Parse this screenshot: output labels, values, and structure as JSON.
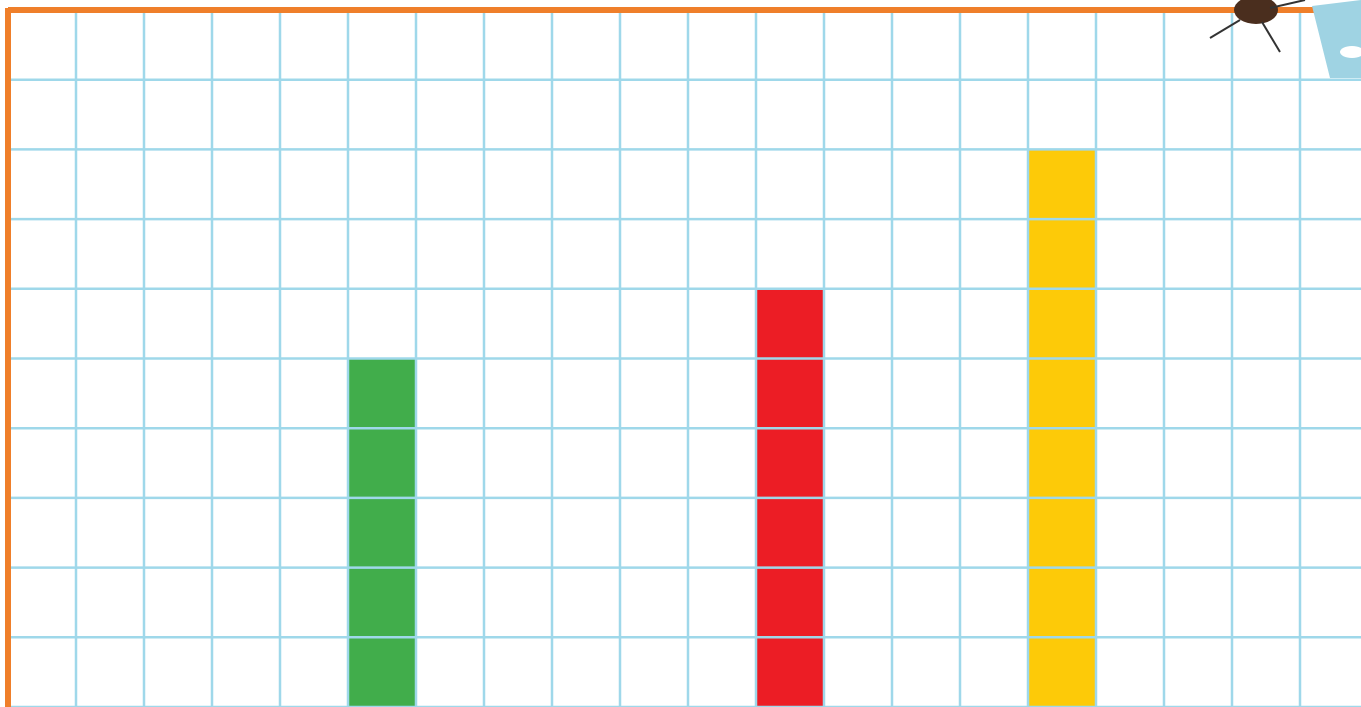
{
  "chart_data": {
    "type": "bar",
    "categories": [
      null,
      null,
      null,
      null,
      null,
      null,
      null,
      null,
      null,
      null,
      null,
      null,
      null,
      null,
      null,
      null,
      null,
      null,
      null,
      null
    ],
    "series": [
      {
        "color": "#41ad4b",
        "values": [
          null,
          null,
          null,
          null,
          null,
          5,
          null,
          null,
          null,
          null,
          null,
          null,
          null,
          null,
          null,
          null,
          null,
          null,
          null,
          null
        ]
      },
      {
        "color": "#ec1d25",
        "values": [
          null,
          null,
          null,
          null,
          null,
          null,
          null,
          null,
          null,
          null,
          null,
          6,
          null,
          null,
          null,
          null,
          null,
          null,
          null,
          null
        ]
      },
      {
        "color": "#fdca08",
        "values": [
          null,
          null,
          null,
          null,
          null,
          null,
          null,
          null,
          null,
          null,
          null,
          null,
          null,
          null,
          null,
          8,
          null,
          null,
          null,
          null
        ]
      }
    ],
    "ylim": [
      0,
      10
    ],
    "yticks": [
      0,
      1,
      2,
      3,
      4,
      5,
      6,
      7,
      8,
      9,
      10
    ],
    "grid": true
  }
}
